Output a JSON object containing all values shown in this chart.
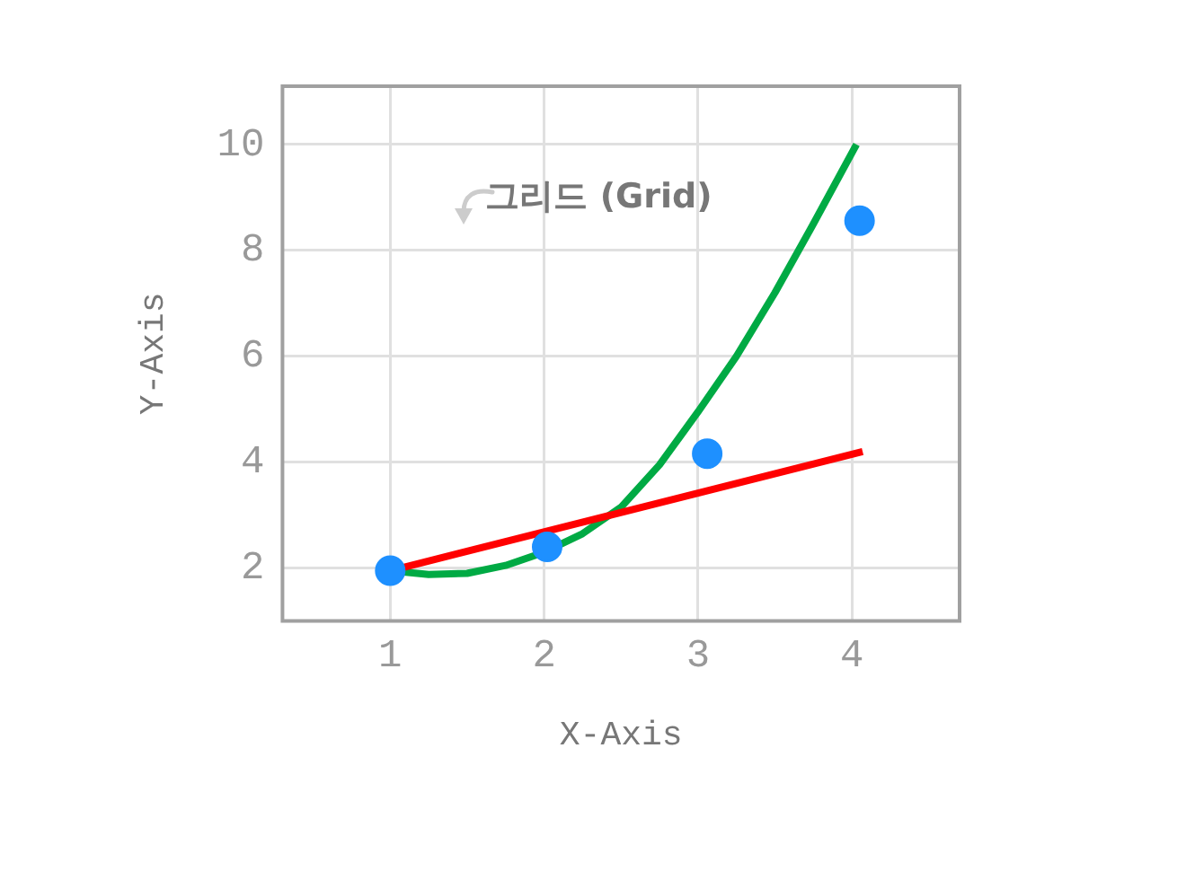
{
  "chart_data": {
    "type": "line",
    "xlabel": "X-Axis",
    "ylabel": "Y-Axis",
    "xlim": [
      0.3,
      4.7
    ],
    "ylim": [
      1,
      11.1
    ],
    "xticks": [
      1,
      2,
      3,
      4
    ],
    "yticks": [
      2,
      4,
      6,
      8,
      10
    ],
    "grid": true,
    "legend": false,
    "annotations": [
      "그리드 (Grid)"
    ],
    "series": [
      {
        "color": "#00aa44",
        "x": [
          1,
          1.25,
          1.5,
          1.75,
          2,
          2.25,
          2.5,
          2.75,
          3,
          3.25,
          3.5,
          3.75,
          4.03
        ],
        "values": [
          1.95,
          1.88,
          1.9,
          2.05,
          2.3,
          2.65,
          3.15,
          3.95,
          4.95,
          6.0,
          7.2,
          8.5,
          10
        ],
        "marker": "none",
        "line_style": "solid"
      },
      {
        "color": "#ff0000",
        "x": [
          1,
          4.07
        ],
        "values": [
          1.95,
          4.2
        ],
        "marker": "none",
        "line_style": "solid"
      },
      {
        "type": "scatter",
        "color": "#1e90ff",
        "x": [
          1,
          2.02,
          3.06,
          4.05
        ],
        "values": [
          1.95,
          2.4,
          4.16,
          8.56
        ],
        "marker": "circle"
      }
    ]
  }
}
